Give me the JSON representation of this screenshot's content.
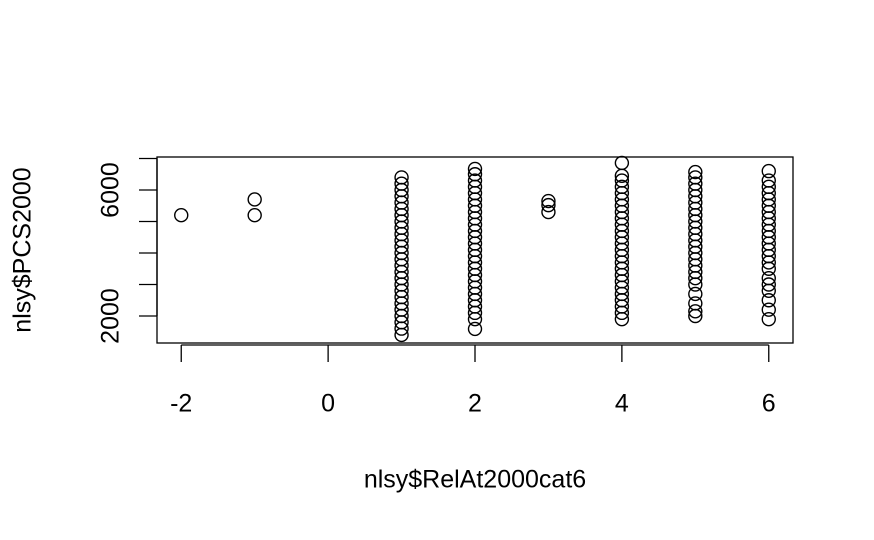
{
  "chart_data": {
    "type": "scatter",
    "xlabel": "nlsy$RelAt2000cat6",
    "ylabel": "nlsy$PCS2000",
    "xlim": [
      -2.33,
      6.33
    ],
    "ylim": [
      1143,
      7048
    ],
    "xticks": [
      -2,
      0,
      2,
      4,
      6
    ],
    "yticks": [
      2000,
      {
        "value": 3000,
        "label": null
      },
      {
        "value": 4000,
        "label": null
      },
      {
        "value": 5000,
        "label": null
      },
      6000,
      {
        "value": 7000,
        "label": null
      }
    ],
    "color": "#000000",
    "x": [
      -2,
      -1,
      -1,
      3,
      3,
      3,
      1,
      1,
      1,
      1,
      1,
      1,
      1,
      1,
      1,
      1,
      1,
      1,
      1,
      1,
      1,
      1,
      1,
      1,
      1,
      1,
      1,
      1,
      1,
      1,
      1,
      1,
      2,
      2,
      2,
      2,
      2,
      2,
      2,
      2,
      2,
      2,
      2,
      2,
      2,
      2,
      2,
      2,
      2,
      2,
      2,
      2,
      2,
      2,
      2,
      2,
      2,
      2,
      4,
      4,
      4,
      4,
      4,
      4,
      4,
      4,
      4,
      4,
      4,
      4,
      4,
      4,
      4,
      4,
      4,
      4,
      4,
      4,
      4,
      4,
      4,
      4,
      4,
      5,
      5,
      5,
      5,
      5,
      5,
      5,
      5,
      5,
      5,
      5,
      5,
      5,
      5,
      5,
      5,
      5,
      5,
      5,
      5,
      5,
      5,
      5,
      6,
      6,
      6,
      6,
      6,
      6,
      6,
      6,
      6,
      6,
      6,
      6,
      6,
      6,
      6,
      6,
      6,
      6,
      6,
      6,
      6,
      6
    ],
    "y": [
      5200,
      5700,
      5200,
      5650,
      5520,
      5300,
      6400,
      6200,
      6000,
      5800,
      5600,
      5400,
      5200,
      5000,
      4800,
      4600,
      4400,
      4200,
      4000,
      3800,
      3600,
      3400,
      3200,
      3000,
      2800,
      2600,
      2400,
      2200,
      2000,
      1800,
      1600,
      1400,
      6670,
      6500,
      6300,
      6100,
      5900,
      5700,
      5500,
      5300,
      5100,
      4900,
      4700,
      4500,
      4300,
      4100,
      3900,
      3700,
      3500,
      3300,
      3100,
      2900,
      2700,
      2500,
      2300,
      2100,
      1900,
      1590,
      6860,
      6450,
      6300,
      6100,
      5900,
      5700,
      5500,
      5300,
      5100,
      4900,
      4700,
      4500,
      4300,
      4100,
      3900,
      3700,
      3500,
      3300,
      3100,
      2900,
      2700,
      2500,
      2300,
      2100,
      1900,
      6570,
      6400,
      6200,
      6000,
      5800,
      5600,
      5400,
      5200,
      5000,
      4800,
      4600,
      4400,
      4200,
      4000,
      3800,
      3600,
      3400,
      3200,
      3000,
      2700,
      2400,
      2150,
      2000,
      6600,
      6300,
      6100,
      5900,
      5700,
      5500,
      5300,
      5100,
      4900,
      4700,
      4500,
      4300,
      4100,
      3900,
      3700,
      3500,
      3200,
      3000,
      2800,
      2500,
      2200,
      1900
    ]
  }
}
